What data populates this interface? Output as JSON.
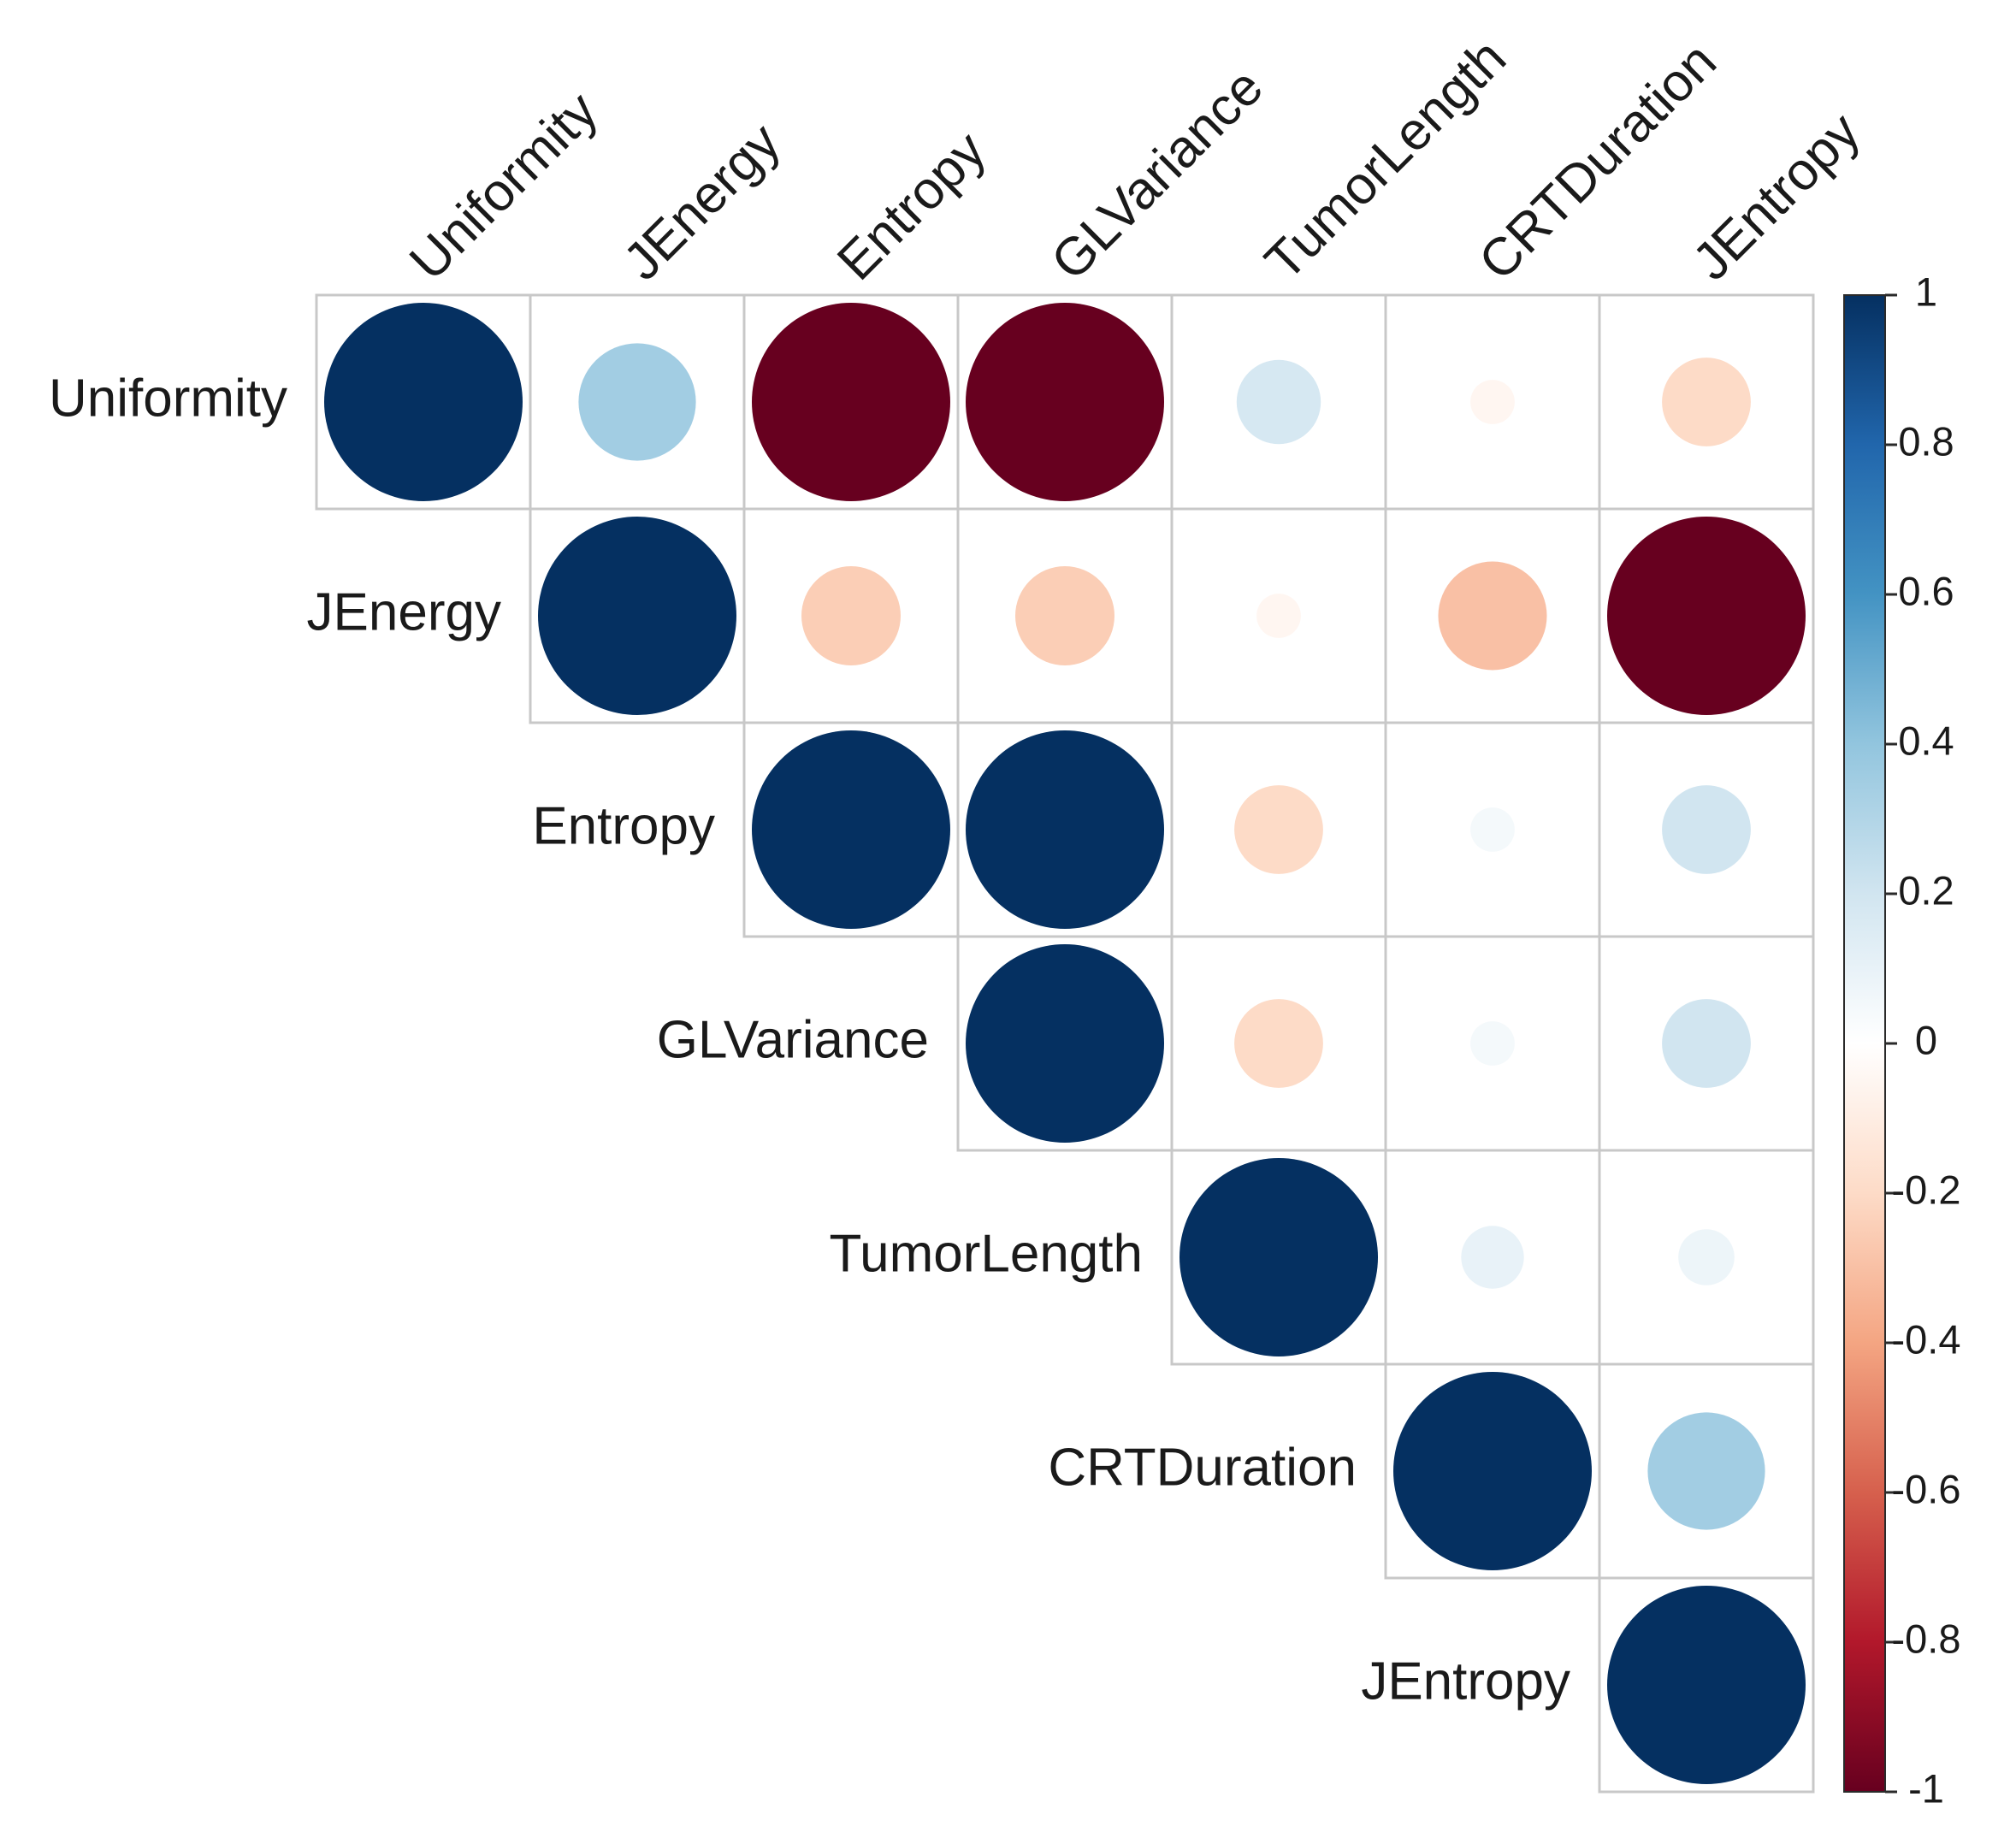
{
  "chart_data": {
    "type": "heatmap",
    "subtype": "correlation-circle-upper",
    "variables": [
      "Uniformity",
      "JEnergy",
      "Entropy",
      "GLVariance",
      "TumorLength",
      "CRTDuration",
      "JEntropy"
    ],
    "matrix": [
      [
        1,
        0.35,
        -1,
        -1,
        0.18,
        -0.05,
        -0.2
      ],
      [
        0.35,
        1,
        -0.25,
        -0.25,
        -0.05,
        -0.3,
        -1
      ],
      [
        -1,
        -0.25,
        1,
        1,
        -0.2,
        0.05,
        0.2
      ],
      [
        -1,
        -0.25,
        1,
        1,
        -0.2,
        0.05,
        0.2
      ],
      [
        0.18,
        -0.05,
        -0.2,
        -0.2,
        1,
        0.1,
        0.08
      ],
      [
        -0.05,
        -0.3,
        0.05,
        0.05,
        0.1,
        1,
        0.35
      ],
      [
        -0.2,
        -1,
        0.2,
        0.2,
        0.08,
        0.35,
        1
      ]
    ],
    "colorbar": {
      "min": -1,
      "max": 1,
      "ticks": [
        "1",
        "0.8",
        "0.6",
        "0.4",
        "0.2",
        "0",
        "-0.2",
        "-0.4",
        "-0.6",
        "-0.8",
        "-1"
      ],
      "colors": [
        "#67001F",
        "#B2182B",
        "#D6604D",
        "#F4A582",
        "#FDDBC7",
        "#FFFFFF",
        "#D1E5F0",
        "#92C5DE",
        "#4393C3",
        "#2166AC",
        "#053061"
      ]
    }
  }
}
